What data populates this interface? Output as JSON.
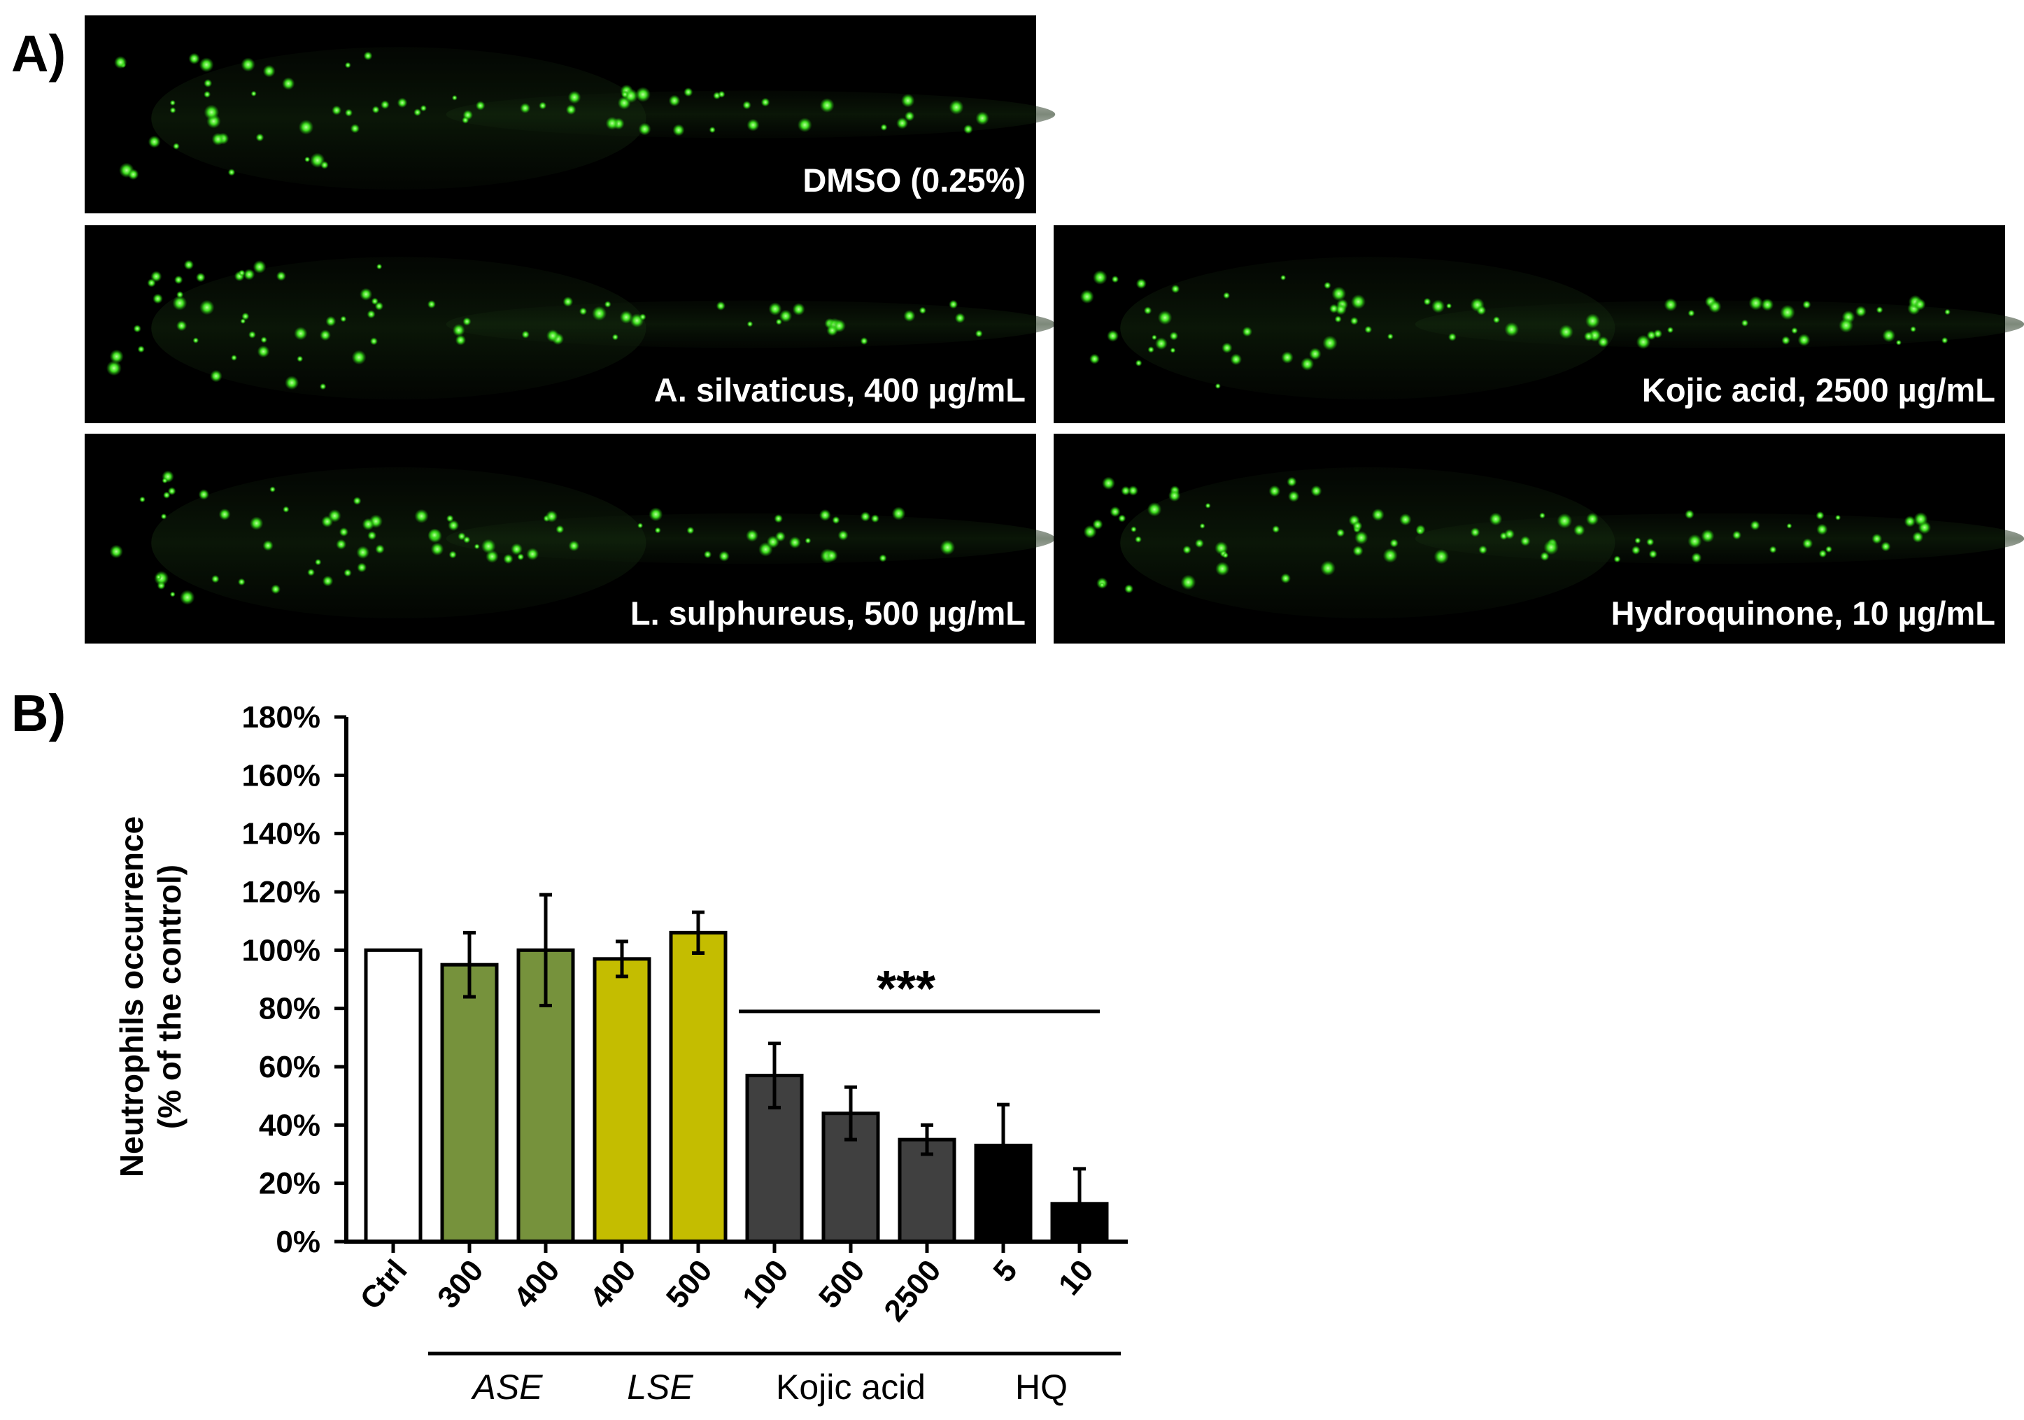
{
  "panel_a": {
    "label": "A)",
    "images": [
      {
        "label": "DMSO (0.25%)"
      },
      {
        "label": "A. silvaticus, 400 µg/mL"
      },
      {
        "label": "Kojic acid, 2500 µg/mL"
      },
      {
        "label": "L. sulphureus, 500 µg/mL"
      },
      {
        "label": "Hydroquinone,  10 µg/mL"
      }
    ],
    "colors": {
      "background": "#000000",
      "signal": "#33e01a",
      "label": "#ffffff"
    }
  },
  "panel_b": {
    "label": "B)"
  },
  "chart_data": {
    "type": "bar",
    "ylabel_line1": "Neutrophils occurrence",
    "ylabel_line2": "(% of the control)",
    "ylim": [
      0,
      180
    ],
    "yticks": [
      "0%",
      "20%",
      "40%",
      "60%",
      "80%",
      "100%",
      "120%",
      "140%",
      "160%",
      "180%"
    ],
    "categories": [
      "Ctrl",
      "300",
      "400",
      "400",
      "500",
      "100",
      "500",
      "2500",
      "5",
      "10"
    ],
    "values": [
      100,
      95,
      100,
      97,
      106,
      57,
      44,
      35,
      33,
      13
    ],
    "errors": [
      0,
      11,
      19,
      6,
      7,
      11,
      9,
      5,
      14,
      12
    ],
    "bar_colors": [
      "#ffffff",
      "#76923c",
      "#76923c",
      "#c4bd00",
      "#c4bd00",
      "#404040",
      "#404040",
      "#404040",
      "#000000",
      "#000000"
    ],
    "groups": [
      {
        "label": "ASE",
        "italic": true,
        "from": 1,
        "to": 2
      },
      {
        "label": "LSE",
        "italic": true,
        "from": 3,
        "to": 4
      },
      {
        "label": "Kojic acid",
        "italic": false,
        "from": 5,
        "to": 7
      },
      {
        "label": "HQ",
        "italic": false,
        "from": 8,
        "to": 9
      }
    ],
    "significance": {
      "label": "***",
      "from": 5,
      "to": 9,
      "y": 79
    },
    "grid": false
  }
}
